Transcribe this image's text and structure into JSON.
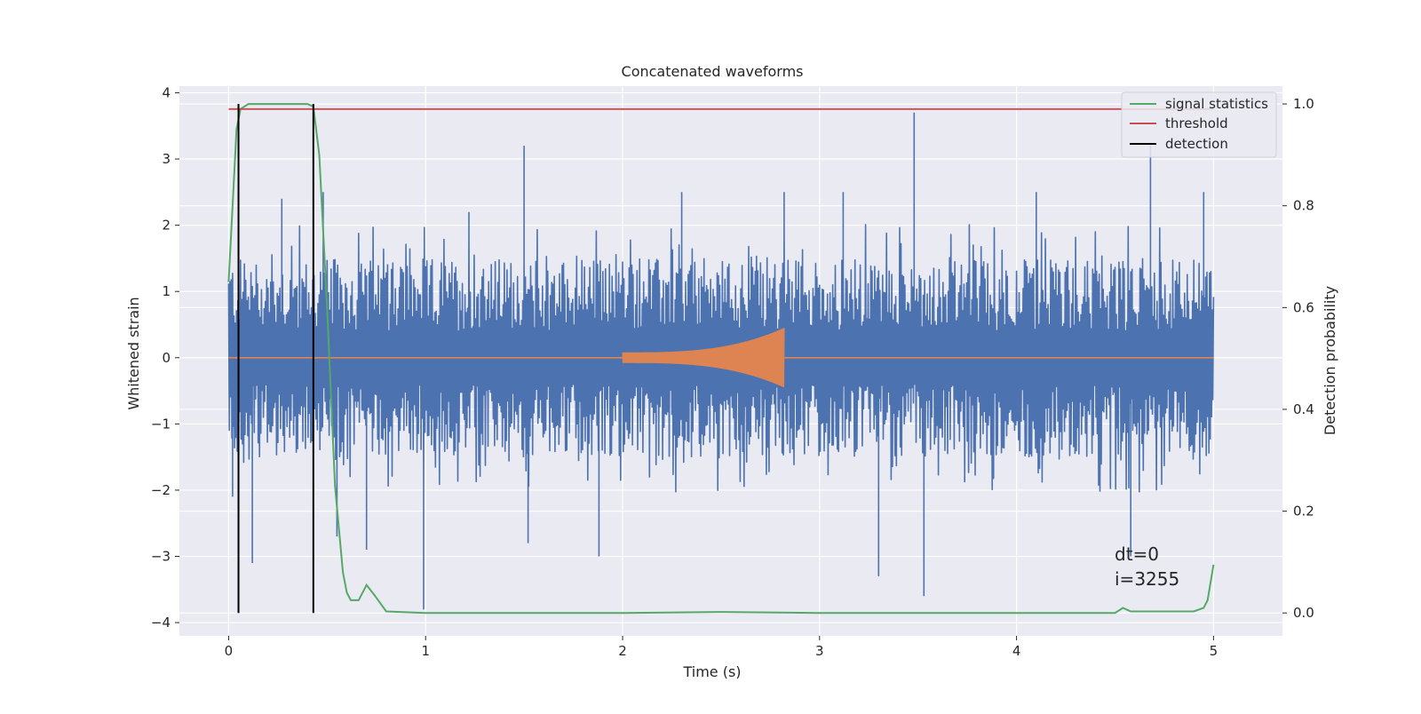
{
  "chart_data": {
    "type": "line",
    "title": "Concatenated waveforms",
    "xlabel": "Time (s)",
    "ylabel": "Whitened strain",
    "y2label": "Detection probability",
    "xlim": [
      -0.25,
      5.35
    ],
    "ylim": [
      -4.2,
      4.1
    ],
    "y2lim": [
      -0.045,
      1.035
    ],
    "x_ticks": [
      0,
      1,
      2,
      3,
      4,
      5
    ],
    "y_ticks": [
      -4,
      -3,
      -2,
      -1,
      0,
      1,
      2,
      3,
      4
    ],
    "y2_ticks": [
      0.0,
      0.2,
      0.4,
      0.6,
      0.8,
      1.0
    ],
    "x_tick_labels": [
      "0",
      "1",
      "2",
      "3",
      "4",
      "5"
    ],
    "y_tick_labels": [
      "−4",
      "−3",
      "−2",
      "−1",
      "0",
      "1",
      "2",
      "3",
      "4"
    ],
    "y2_tick_labels": [
      "0.0",
      "0.2",
      "0.4",
      "0.6",
      "0.8",
      "1.0"
    ],
    "grid": true,
    "legend_position": "top-right",
    "colors": {
      "background": "#eaeaf2",
      "grid": "#ffffff",
      "strain": "#4c72b0",
      "injection": "#dd8452",
      "signal_statistics": "#55a868",
      "threshold": "#c44e52",
      "detection": "#000000"
    },
    "series": [
      {
        "name": "",
        "axis": "left",
        "kind": "noise",
        "x_range": [
          0,
          5
        ],
        "typical_amplitude": [
          -1.6,
          1.6
        ],
        "peaks": [
          {
            "x": 0.02,
            "y": -2.1
          },
          {
            "x": 0.12,
            "y": -3.1
          },
          {
            "x": 0.27,
            "y": 2.4
          },
          {
            "x": 0.43,
            "y": 2.8
          },
          {
            "x": 0.48,
            "y": 2.5
          },
          {
            "x": 0.55,
            "y": -2.7
          },
          {
            "x": 0.7,
            "y": -2.9
          },
          {
            "x": 0.99,
            "y": -3.8
          },
          {
            "x": 1.22,
            "y": 2.2
          },
          {
            "x": 1.5,
            "y": 3.2
          },
          {
            "x": 1.52,
            "y": -2.8
          },
          {
            "x": 1.88,
            "y": -3.0
          },
          {
            "x": 2.3,
            "y": 2.5
          },
          {
            "x": 2.82,
            "y": 2.5
          },
          {
            "x": 3.12,
            "y": 2.5
          },
          {
            "x": 3.3,
            "y": -3.3
          },
          {
            "x": 3.48,
            "y": 3.7
          },
          {
            "x": 3.53,
            "y": -3.6
          },
          {
            "x": 4.1,
            "y": 2.5
          },
          {
            "x": 4.58,
            "y": -3.0
          },
          {
            "x": 4.68,
            "y": 3.2
          },
          {
            "x": 4.95,
            "y": 2.5
          }
        ]
      },
      {
        "name": "",
        "axis": "left",
        "kind": "chirp",
        "x_range": [
          2.0,
          2.82
        ],
        "amplitude_start": 0.08,
        "amplitude_peak": 0.45,
        "baseline": 0
      },
      {
        "name": "signal statistics",
        "axis": "right",
        "x": [
          0,
          0.02,
          0.04,
          0.06,
          0.1,
          0.2,
          0.4,
          0.43,
          0.46,
          0.5,
          0.54,
          0.58,
          0.6,
          0.62,
          0.66,
          0.7,
          0.74,
          0.8,
          1.0,
          2.0,
          2.5,
          3.0,
          4.0,
          4.5,
          4.54,
          4.58,
          4.9,
          4.95,
          4.97,
          5.0
        ],
        "y": [
          0.65,
          0.8,
          0.95,
          0.99,
          1.0,
          1.0,
          1.0,
          0.995,
          0.9,
          0.6,
          0.25,
          0.08,
          0.04,
          0.025,
          0.025,
          0.055,
          0.035,
          0.003,
          0.0,
          0.0,
          0.002,
          0.0,
          0.0,
          0.0,
          0.01,
          0.003,
          0.003,
          0.01,
          0.025,
          0.095
        ]
      },
      {
        "name": "threshold",
        "axis": "right",
        "x": [
          0,
          5
        ],
        "y": [
          0.99,
          0.99
        ]
      },
      {
        "name": "detection",
        "axis": "right",
        "x": [
          0.05,
          0.43
        ],
        "y": [
          0,
          1.0
        ]
      }
    ],
    "annotations": [
      "dt=0",
      "i=3255"
    ]
  }
}
